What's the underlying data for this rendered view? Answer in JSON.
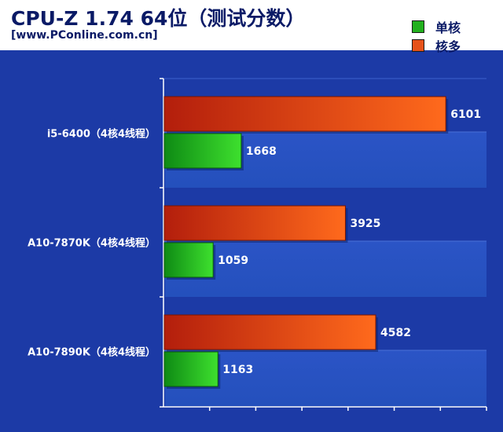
{
  "header": {
    "title": "CPU-Z 1.74 64位（测试分数）",
    "subtitle": "[www.PConline.com.cn]"
  },
  "legend": [
    {
      "label": "单核",
      "color": "#22b01e"
    },
    {
      "label": "核多",
      "color": "#e6521a"
    }
  ],
  "colors": {
    "background": "#1c3aa6",
    "plot_band": "#2c55c4",
    "single_core": "#22b01e",
    "multi_core": "#e6521a"
  },
  "chart_data": {
    "type": "bar",
    "orientation": "horizontal",
    "categories": [
      "i5-6400（4核4线程）",
      "A10-7870K（4核4线程）",
      "A10-7890K（4核4线程）"
    ],
    "series": [
      {
        "name": "核多",
        "values": [
          6101,
          3925,
          4582
        ]
      },
      {
        "name": "单核",
        "values": [
          1668,
          1059,
          1163
        ]
      }
    ],
    "title": "CPU-Z 1.74 64位（测试分数）",
    "xlim": [
      0,
      7000
    ],
    "grid": true,
    "legend_position": "top-right",
    "data_labels": true
  }
}
